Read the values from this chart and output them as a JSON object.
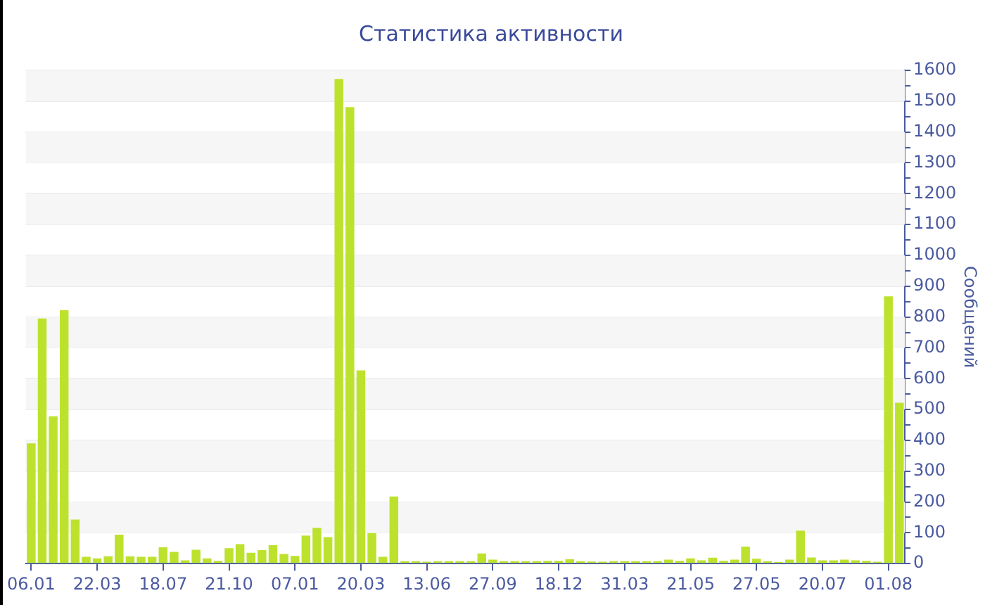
{
  "chart_data": {
    "type": "bar",
    "title": "Статистика активности",
    "y2label": "Сообщений",
    "categories": [
      "06.01",
      null,
      null,
      null,
      null,
      null,
      "22.03",
      null,
      null,
      null,
      null,
      null,
      "18.07",
      null,
      null,
      null,
      null,
      null,
      "21.10",
      null,
      null,
      null,
      null,
      null,
      "07.01",
      null,
      null,
      null,
      null,
      null,
      "20.03",
      null,
      null,
      null,
      null,
      null,
      "13.06",
      null,
      null,
      null,
      null,
      null,
      "27.09",
      null,
      null,
      null,
      null,
      null,
      "18.12",
      null,
      null,
      null,
      null,
      null,
      "31.03",
      null,
      null,
      null,
      null,
      null,
      "21.05",
      null,
      null,
      null,
      null,
      null,
      "27.05",
      null,
      null,
      null,
      null,
      null,
      "20.07",
      null,
      null,
      null,
      null,
      null,
      "01.08",
      null
    ],
    "series": [
      {
        "axis": "y2",
        "color": "#bde22e",
        "values": [
          390,
          795,
          478,
          822,
          143,
          22,
          17,
          24,
          94,
          24,
          22,
          22,
          53,
          38,
          11,
          45,
          17,
          9,
          50,
          63,
          35,
          44,
          60,
          31,
          25,
          91,
          116,
          86,
          1572,
          1481,
          627,
          99,
          22,
          218,
          8,
          8,
          6,
          8,
          8,
          8,
          8,
          33,
          13,
          8,
          8,
          8,
          8,
          9,
          9,
          14,
          8,
          7,
          6,
          8,
          8,
          8,
          8,
          8,
          13,
          9,
          17,
          11,
          19,
          9,
          13,
          55,
          16,
          8,
          5,
          13,
          107,
          20,
          11,
          11,
          13,
          11,
          9,
          6,
          867,
          522
        ]
      }
    ],
    "y2lim": [
      0,
      1600
    ],
    "y2ticks": [
      0,
      {
        "value": 50,
        "label": null
      },
      100,
      {
        "value": 150,
        "label": null
      },
      200,
      {
        "value": 250,
        "label": null
      },
      300,
      {
        "value": 350,
        "label": null
      },
      400,
      {
        "value": 450,
        "label": null
      },
      500,
      {
        "value": 550,
        "label": null
      },
      600,
      {
        "value": 650,
        "label": null
      },
      700,
      {
        "value": 750,
        "label": null
      },
      800,
      {
        "value": 850,
        "label": null
      },
      900,
      {
        "value": 950,
        "label": null
      },
      1000,
      {
        "value": 1050,
        "label": null
      },
      1100,
      {
        "value": 1150,
        "label": null
      },
      1200,
      {
        "value": 1250,
        "label": null
      },
      1300,
      {
        "value": 1350,
        "label": null
      },
      1400,
      {
        "value": 1450,
        "label": null
      },
      1500,
      {
        "value": 1550,
        "label": null
      },
      1600
    ],
    "grid": "y",
    "legend": false
  }
}
